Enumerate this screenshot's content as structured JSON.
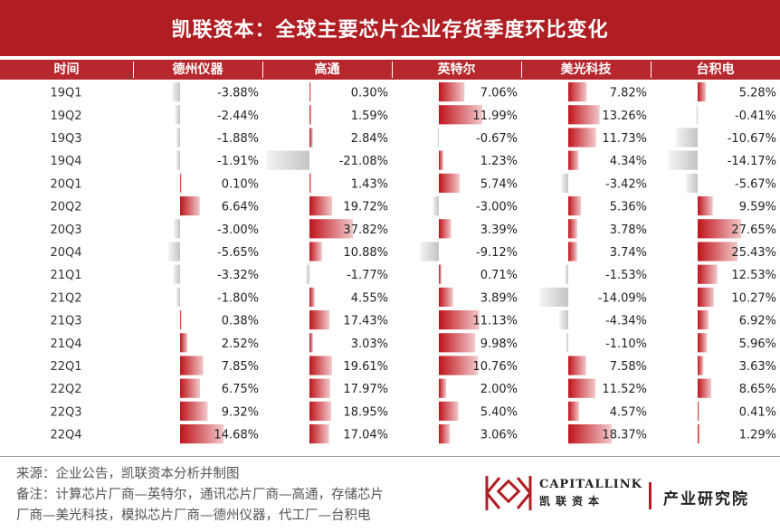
{
  "title": "凯联资本：全球主要芯片企业存货季度环比变化",
  "chart_data": {
    "type": "table",
    "columns": [
      "时间",
      "德州仪器",
      "高通",
      "英特尔",
      "美光科技",
      "台积电"
    ],
    "rows": [
      {
        "period": "19Q1",
        "values": [
          -3.88,
          0.3,
          7.06,
          7.82,
          5.28
        ]
      },
      {
        "period": "19Q2",
        "values": [
          -2.44,
          1.59,
          11.99,
          13.26,
          -0.41
        ]
      },
      {
        "period": "19Q3",
        "values": [
          -1.88,
          2.84,
          -0.67,
          11.73,
          -10.67
        ]
      },
      {
        "period": "19Q4",
        "values": [
          -1.91,
          -21.08,
          1.23,
          4.34,
          -14.17
        ]
      },
      {
        "period": "20Q1",
        "values": [
          0.1,
          1.43,
          5.74,
          -3.42,
          -5.67
        ]
      },
      {
        "period": "20Q2",
        "values": [
          6.64,
          19.72,
          -3.0,
          5.36,
          9.59
        ]
      },
      {
        "period": "20Q3",
        "values": [
          -3.0,
          37.82,
          3.39,
          3.78,
          27.65
        ]
      },
      {
        "period": "20Q4",
        "values": [
          -5.65,
          10.88,
          -9.12,
          3.74,
          25.43
        ]
      },
      {
        "period": "21Q1",
        "values": [
          -3.32,
          -1.77,
          0.71,
          -1.53,
          12.53
        ]
      },
      {
        "period": "21Q2",
        "values": [
          -1.8,
          4.55,
          3.89,
          -14.09,
          10.27
        ]
      },
      {
        "period": "21Q3",
        "values": [
          0.38,
          17.43,
          11.13,
          -4.34,
          6.92
        ]
      },
      {
        "period": "21Q4",
        "values": [
          2.52,
          3.03,
          9.98,
          -1.1,
          5.96
        ]
      },
      {
        "period": "22Q1",
        "values": [
          7.85,
          19.61,
          10.76,
          7.58,
          3.63
        ]
      },
      {
        "period": "22Q2",
        "values": [
          6.75,
          17.97,
          2.0,
          11.52,
          8.65
        ]
      },
      {
        "period": "22Q3",
        "values": [
          9.32,
          18.95,
          5.4,
          4.57,
          0.41
        ]
      },
      {
        "period": "22Q4",
        "values": [
          14.68,
          17.04,
          3.06,
          18.37,
          1.29
        ]
      }
    ],
    "value_format": "%",
    "positive_color": "#c0141b",
    "negative_color": "#c8c8c8"
  },
  "footer": {
    "source_line": "来源：企业公告，凯联资本分析并制图",
    "note_line1": "备注：计算芯片厂商—英特尔，通讯芯片厂商—高通，存储芯片",
    "note_line2": "厂商—美光科技，模拟芯片厂商—德州仪器，代工厂—台积电",
    "brand_en": "CAPITALLINK",
    "brand_cn": "凯联资本",
    "institute": "产业研究院"
  }
}
